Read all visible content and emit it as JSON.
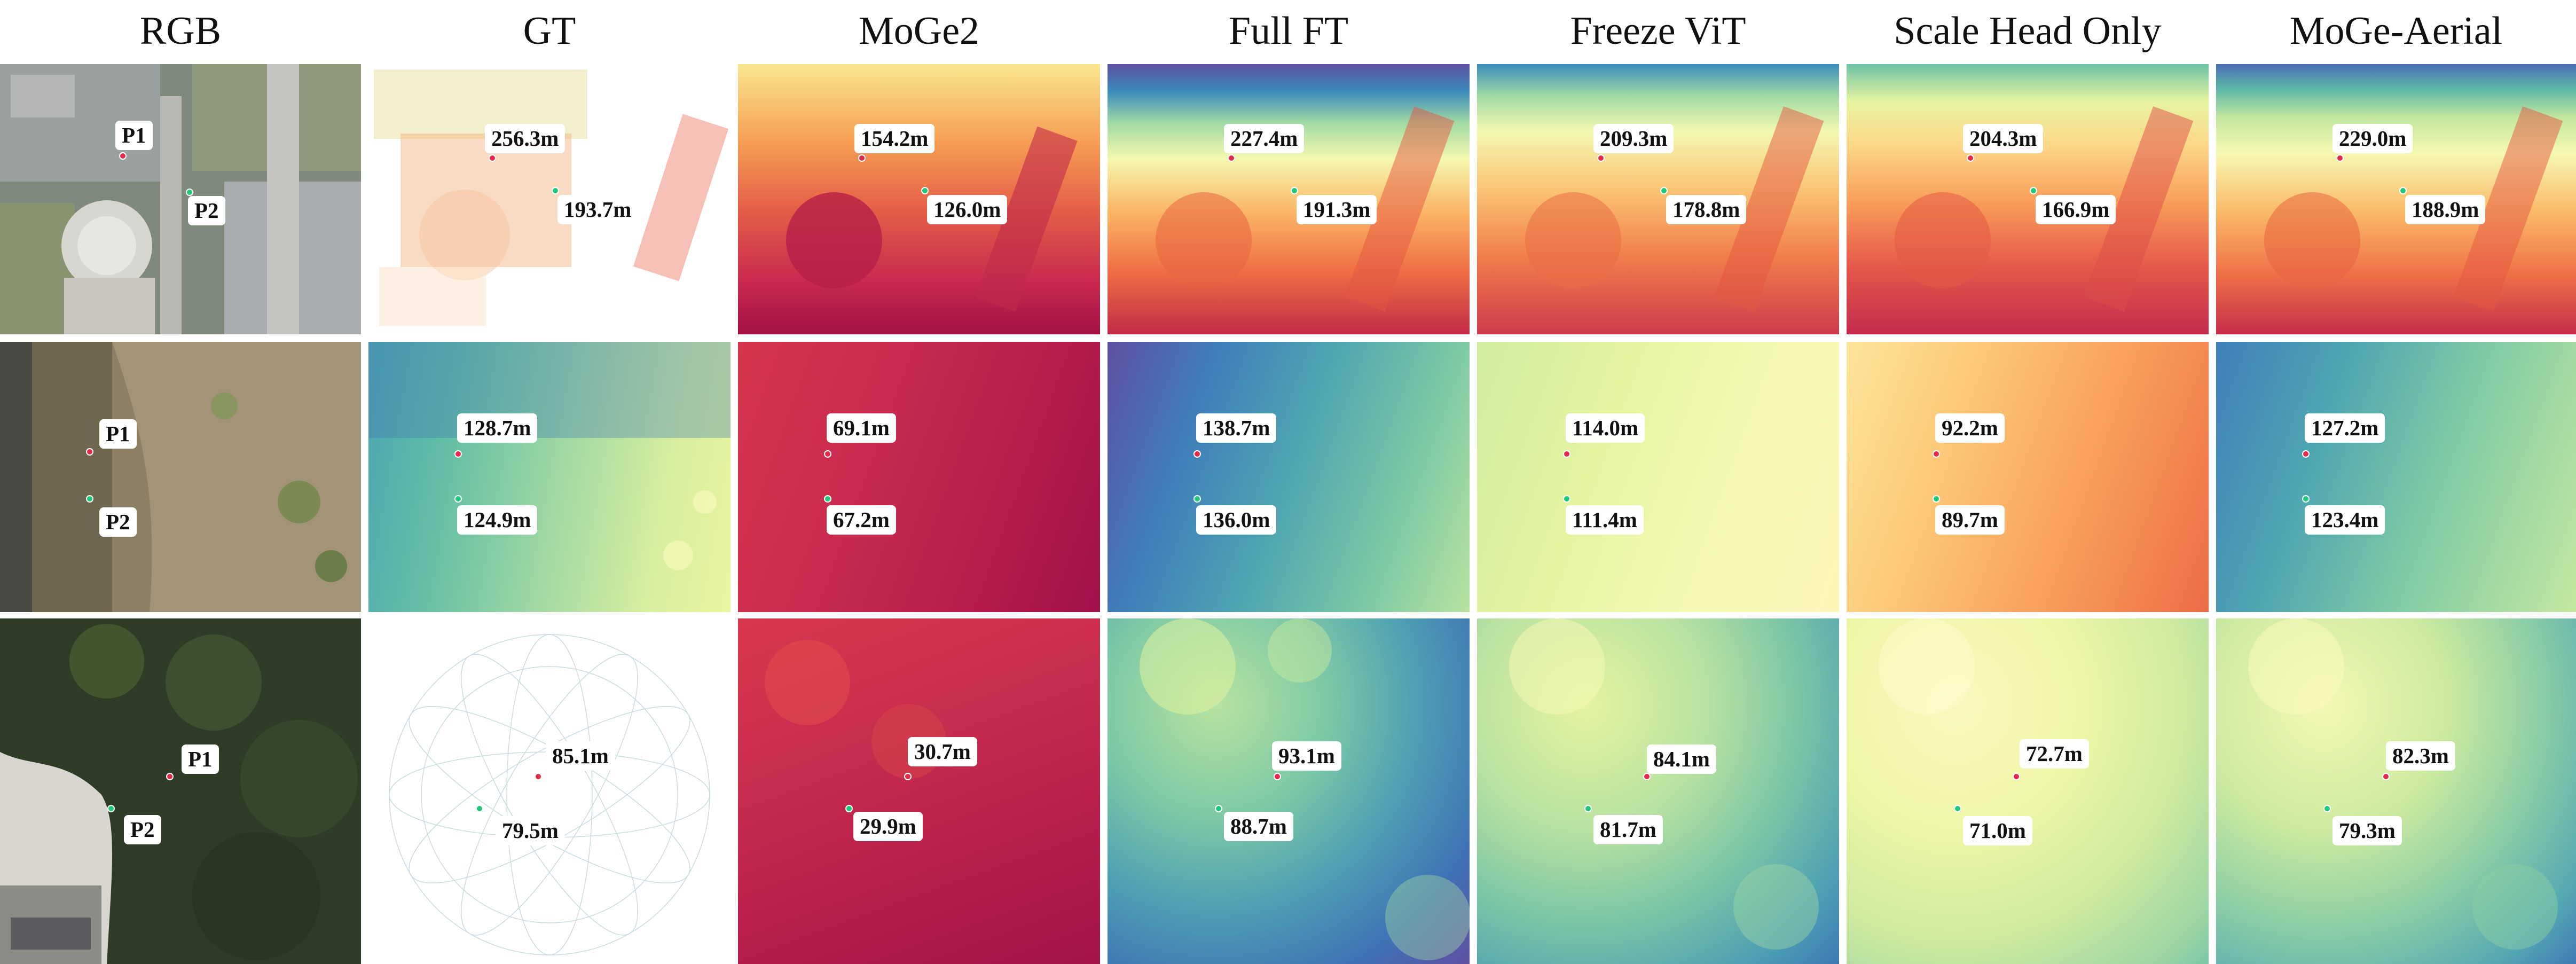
{
  "columns": [
    "RGB",
    "GT",
    "MoGe2",
    "Full FT",
    "Freeze ViT",
    "Scale Head Only",
    "MoGe-Aerial"
  ],
  "point_labels": {
    "p1": "P1",
    "p2": "P2"
  },
  "rows": [
    {
      "gt": {
        "p1": "256.3m",
        "p2": "193.7m"
      },
      "moge2": {
        "p1": "154.2m",
        "p2": "126.0m"
      },
      "full_ft": {
        "p1": "227.4m",
        "p2": "191.3m"
      },
      "freeze_vit": {
        "p1": "209.3m",
        "p2": "178.8m"
      },
      "scale_head_only": {
        "p1": "204.3m",
        "p2": "166.9m"
      },
      "moge_aerial": {
        "p1": "229.0m",
        "p2": "188.9m"
      }
    },
    {
      "gt": {
        "p1": "128.7m",
        "p2": "124.9m"
      },
      "moge2": {
        "p1": "69.1m",
        "p2": "67.2m"
      },
      "full_ft": {
        "p1": "138.7m",
        "p2": "136.0m"
      },
      "freeze_vit": {
        "p1": "114.0m",
        "p2": "111.4m"
      },
      "scale_head_only": {
        "p1": "92.2m",
        "p2": "89.7m"
      },
      "moge_aerial": {
        "p1": "127.2m",
        "p2": "123.4m"
      }
    },
    {
      "gt": {
        "p1": "85.1m",
        "p2": "79.5m"
      },
      "moge2": {
        "p1": "30.7m",
        "p2": "29.9m"
      },
      "full_ft": {
        "p1": "93.1m",
        "p2": "88.7m"
      },
      "freeze_vit": {
        "p1": "84.1m",
        "p2": "81.7m"
      },
      "scale_head_only": {
        "p1": "72.7m",
        "p2": "71.0m"
      },
      "moge_aerial": {
        "p1": "82.3m",
        "p2": "79.3m"
      }
    }
  ],
  "colors": {
    "p1_marker": "#e8284a",
    "p2_marker": "#1fc97a",
    "near": "#9e0142",
    "far": "#5e4fa2"
  }
}
